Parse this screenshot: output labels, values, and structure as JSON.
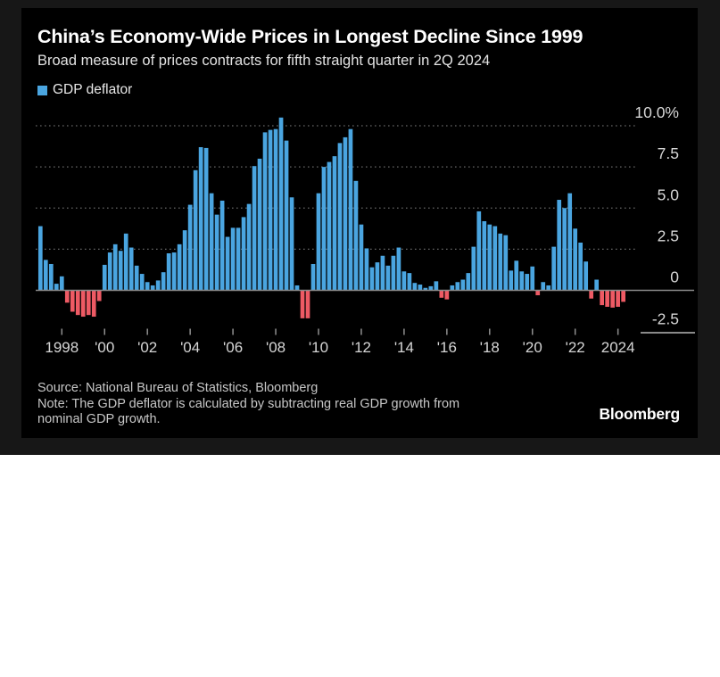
{
  "page": {
    "panel_background": "#171717",
    "card_background": "#000000",
    "page_background": "#ffffff"
  },
  "header": {
    "title": "China’s Economy-Wide Prices in Longest Decline Since 1999",
    "subtitle": "Broad measure of prices contracts for fifth straight quarter in 2Q 2024"
  },
  "legend": {
    "label": "GDP deflator",
    "swatch_color": "#4AA5E0"
  },
  "footer": {
    "source": "Source: National Bureau of Statistics, Bloomberg",
    "note_line1": "Note: The GDP deflator is calculated by subtracting real GDP growth from",
    "note_line2": "nominal GDP growth.",
    "brand": "Bloomberg"
  },
  "chart_data": {
    "type": "bar",
    "series_name": "GDP deflator",
    "unit": "%",
    "frequency": "quarterly",
    "start_period": "1997Q1",
    "end_period": "2024Q2",
    "positive_color": "#4AA5E0",
    "negative_color": "#EE5A64",
    "grid": "dotted horizontal",
    "legend_position": "top-left",
    "ylim": [
      -2.6,
      10.6
    ],
    "gridline_values": [
      10,
      7.5,
      5,
      2.5
    ],
    "y_ticks": [
      {
        "label": "10.0%",
        "value": 10
      },
      {
        "label": "7.5",
        "value": 7.5
      },
      {
        "label": "5.0",
        "value": 5
      },
      {
        "label": "2.5",
        "value": 2.5
      },
      {
        "label": "0",
        "value": 0
      },
      {
        "label": "-2.5",
        "value": -2.5
      }
    ],
    "x_tick_labels": [
      "1998",
      "'00",
      "'02",
      "'04",
      "'06",
      "'08",
      "'10",
      "'12",
      "'14",
      "'16",
      "'18",
      "'20",
      "'22",
      "2024"
    ],
    "quarters": [
      "1997Q1",
      "1997Q2",
      "1997Q3",
      "1997Q4",
      "1998Q1",
      "1998Q2",
      "1998Q3",
      "1998Q4",
      "1999Q1",
      "1999Q2",
      "1999Q3",
      "1999Q4",
      "2000Q1",
      "2000Q2",
      "2000Q3",
      "2000Q4",
      "2001Q1",
      "2001Q2",
      "2001Q3",
      "2001Q4",
      "2002Q1",
      "2002Q2",
      "2002Q3",
      "2002Q4",
      "2003Q1",
      "2003Q2",
      "2003Q3",
      "2003Q4",
      "2004Q1",
      "2004Q2",
      "2004Q3",
      "2004Q4",
      "2005Q1",
      "2005Q2",
      "2005Q3",
      "2005Q4",
      "2006Q1",
      "2006Q2",
      "2006Q3",
      "2006Q4",
      "2007Q1",
      "2007Q2",
      "2007Q3",
      "2007Q4",
      "2008Q1",
      "2008Q2",
      "2008Q3",
      "2008Q4",
      "2009Q1",
      "2009Q2",
      "2009Q3",
      "2009Q4",
      "2010Q1",
      "2010Q2",
      "2010Q3",
      "2010Q4",
      "2011Q1",
      "2011Q2",
      "2011Q3",
      "2011Q4",
      "2012Q1",
      "2012Q2",
      "2012Q3",
      "2012Q4",
      "2013Q1",
      "2013Q2",
      "2013Q3",
      "2013Q4",
      "2014Q1",
      "2014Q2",
      "2014Q3",
      "2014Q4",
      "2015Q1",
      "2015Q2",
      "2015Q3",
      "2015Q4",
      "2016Q1",
      "2016Q2",
      "2016Q3",
      "2016Q4",
      "2017Q1",
      "2017Q2",
      "2017Q3",
      "2017Q4",
      "2018Q1",
      "2018Q2",
      "2018Q3",
      "2018Q4",
      "2019Q1",
      "2019Q2",
      "2019Q3",
      "2019Q4",
      "2020Q1",
      "2020Q2",
      "2020Q3",
      "2020Q4",
      "2021Q1",
      "2021Q2",
      "2021Q3",
      "2021Q4",
      "2022Q1",
      "2022Q2",
      "2022Q3",
      "2022Q4",
      "2023Q1",
      "2023Q2",
      "2023Q3",
      "2023Q4",
      "2024Q1",
      "2024Q2"
    ],
    "values": [
      3.9,
      1.85,
      1.6,
      0.4,
      0.85,
      -0.75,
      -1.3,
      -1.5,
      -1.6,
      -1.5,
      -1.6,
      -0.65,
      1.55,
      2.3,
      2.8,
      2.4,
      3.45,
      2.6,
      1.5,
      1.0,
      0.5,
      0.3,
      0.6,
      1.1,
      2.25,
      2.3,
      2.8,
      3.65,
      5.2,
      7.3,
      8.7,
      8.65,
      5.9,
      4.6,
      5.45,
      3.25,
      3.8,
      3.8,
      4.45,
      5.25,
      7.55,
      8.0,
      9.6,
      9.75,
      9.8,
      10.5,
      9.1,
      5.65,
      0.3,
      -1.7,
      -1.7,
      1.6,
      5.9,
      7.5,
      7.8,
      8.15,
      8.95,
      9.3,
      9.8,
      6.65,
      4.0,
      2.55,
      1.4,
      1.7,
      2.1,
      1.5,
      2.1,
      2.6,
      1.15,
      1.05,
      0.45,
      0.35,
      0.15,
      0.25,
      0.55,
      -0.45,
      -0.55,
      0.3,
      0.5,
      0.65,
      1.05,
      2.65,
      4.8,
      4.2,
      4.0,
      3.9,
      3.45,
      3.35,
      1.2,
      1.8,
      1.15,
      1.0,
      1.45,
      -0.3,
      0.5,
      0.3,
      2.65,
      5.5,
      5.0,
      5.9,
      3.75,
      2.9,
      1.75,
      -0.5,
      0.65,
      -0.9,
      -1.0,
      -1.05,
      -1.0,
      -0.7
    ]
  }
}
